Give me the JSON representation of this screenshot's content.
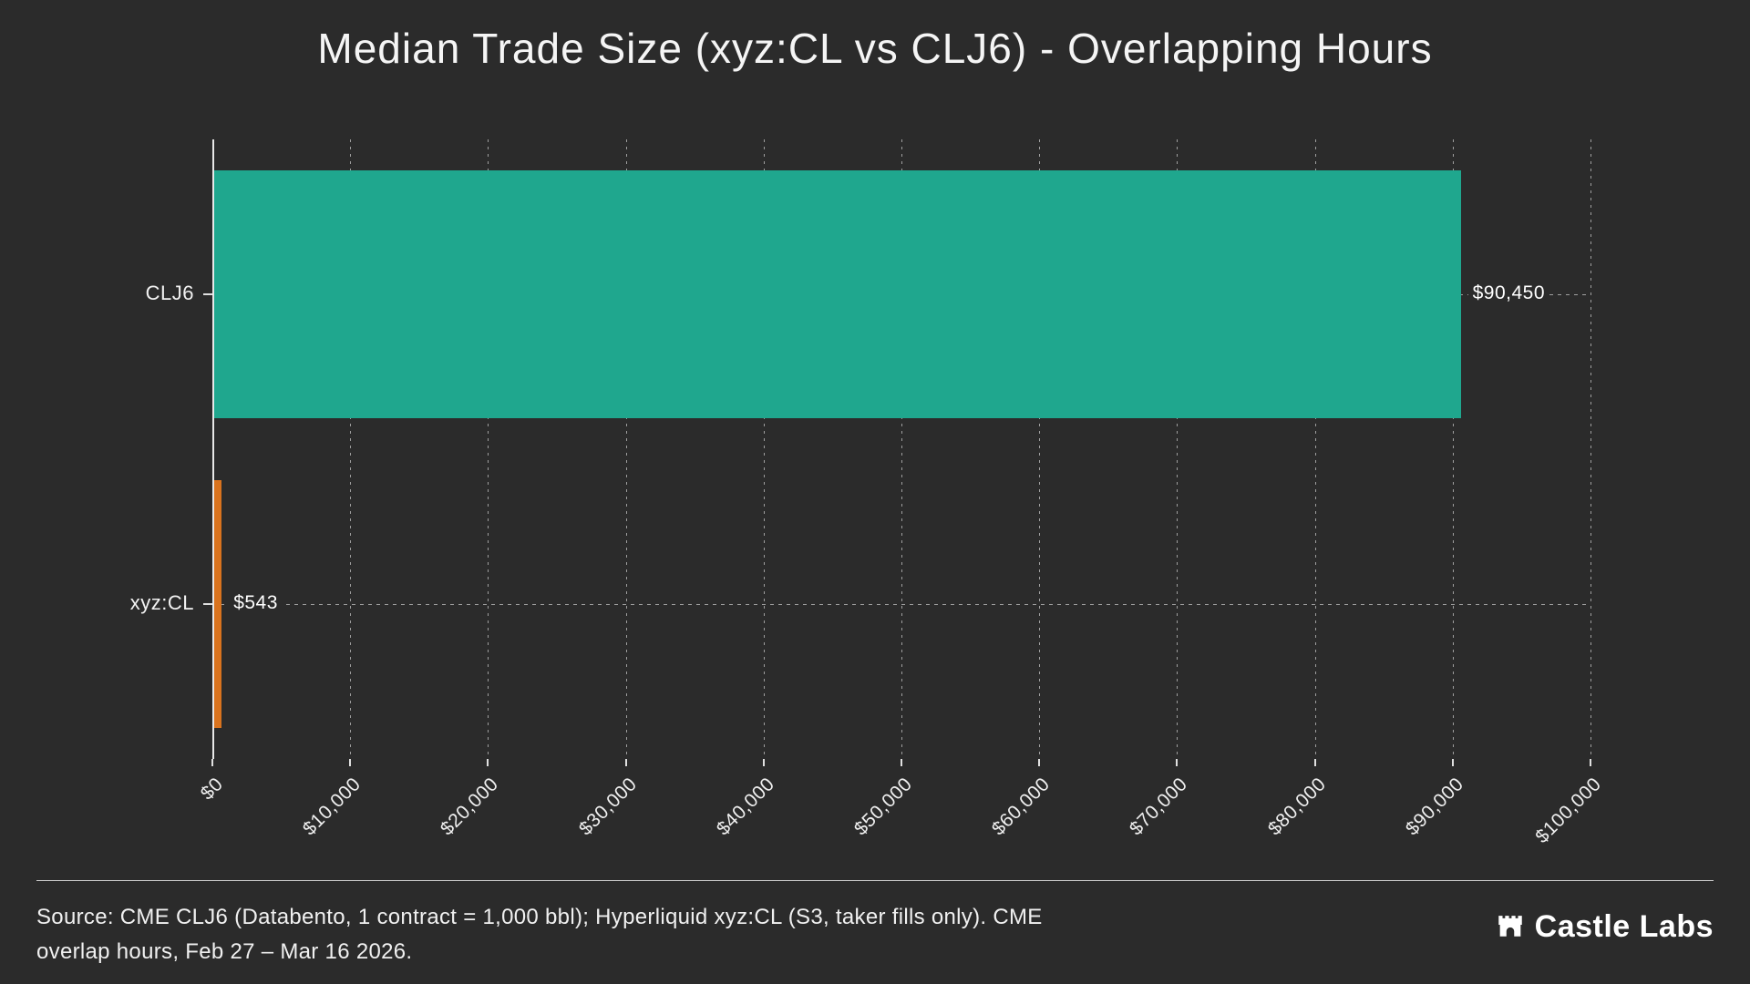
{
  "chart_data": {
    "type": "bar",
    "orientation": "horizontal",
    "title": "Median Trade Size (xyz:CL vs CLJ6) - Overlapping Hours",
    "categories": [
      "CLJ6",
      "xyz:CL"
    ],
    "values": [
      90450,
      543
    ],
    "value_labels": [
      "$90,450",
      "$543"
    ],
    "bar_colors": [
      "#1fa78e",
      "#d9731e"
    ],
    "xlabel": "",
    "ylabel": "",
    "xlim": [
      0,
      100000
    ],
    "x_tick_values": [
      0,
      10000,
      20000,
      30000,
      40000,
      50000,
      60000,
      70000,
      80000,
      90000,
      100000
    ],
    "x_ticks": [
      "$0",
      "$10,000",
      "$20,000",
      "$30,000",
      "$40,000",
      "$50,000",
      "$60,000",
      "$70,000",
      "$80,000",
      "$90,000",
      "$100,000"
    ],
    "grid": "dashed vertical gridlines, dashed horizontal annotation line at each bar",
    "legend": "none"
  },
  "footer": {
    "source_line1": "Source: CME CLJ6 (Databento, 1 contract = 1,000 bbl); Hyperliquid xyz:CL (S3, taker fills only). CME",
    "source_line2": "overlap hours, Feb 27 – Mar 16 2026.",
    "brand": "Castle Labs"
  },
  "colors": {
    "background": "#2b2b2b",
    "bar_clj6": "#1fa78e",
    "bar_xyzcl": "#d9731e",
    "text": "#f2f2f2",
    "grid": "rgba(255,255,255,0.55)",
    "separator": "#cfcfcf"
  }
}
